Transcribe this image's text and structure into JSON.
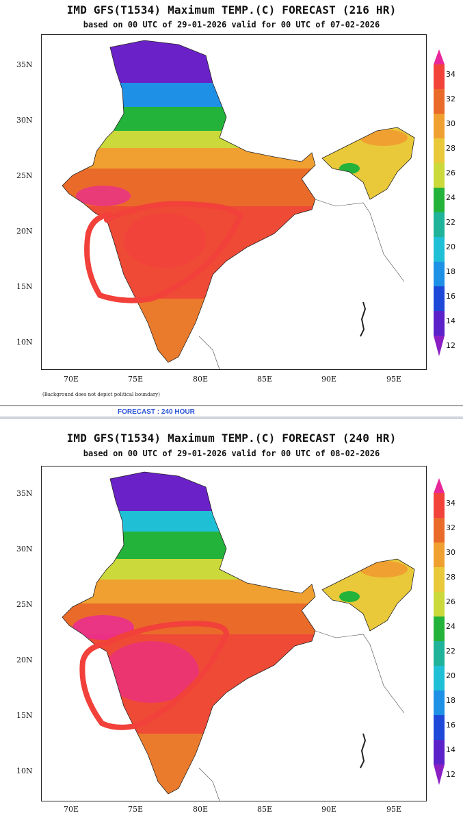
{
  "panels": [
    {
      "title": "IMD GFS(T1534) Maximum TEMP.(C) FORECAST (216 HR)",
      "subtitle": "based on 00 UTC of 29-01-2026 valid for 00 UTC of 07-02-2026",
      "lat_labels": [
        "35N",
        "30N",
        "25N",
        "20N",
        "15N",
        "10N"
      ],
      "lon_labels": [
        "70E",
        "75E",
        "80E",
        "85E",
        "90E",
        "95E"
      ],
      "note": "(Background does not depict political boundary)"
    },
    {
      "title": "IMD GFS(T1534) Maximum TEMP.(C) FORECAST (240 HR)",
      "subtitle": "based on 00 UTC of 29-01-2026 valid for 00 UTC of 08-02-2026",
      "lat_labels": [
        "35N",
        "30N",
        "25N",
        "20N",
        "15N",
        "10N"
      ],
      "lon_labels": [
        "70E",
        "75E",
        "80E",
        "85E",
        "90E",
        "95E"
      ],
      "note": ""
    }
  ],
  "forecast_label": "FORECAST : 240 HOUR",
  "colorbar": {
    "ticks": [
      "34",
      "32",
      "30",
      "28",
      "26",
      "24",
      "22",
      "20",
      "18",
      "16",
      "14",
      "12"
    ],
    "colors": [
      "#e8289a",
      "#f2433b",
      "#ea6a2a",
      "#f0a030",
      "#e9c93a",
      "#cbd93a",
      "#24b33a",
      "#1fb39a",
      "#1fc0d6",
      "#1e90e6",
      "#1e48d8",
      "#5a22c8",
      "#8b1fc4"
    ]
  },
  "annotation": {
    "color": "#f2403a",
    "shape": "hand-drawn-loop"
  }
}
